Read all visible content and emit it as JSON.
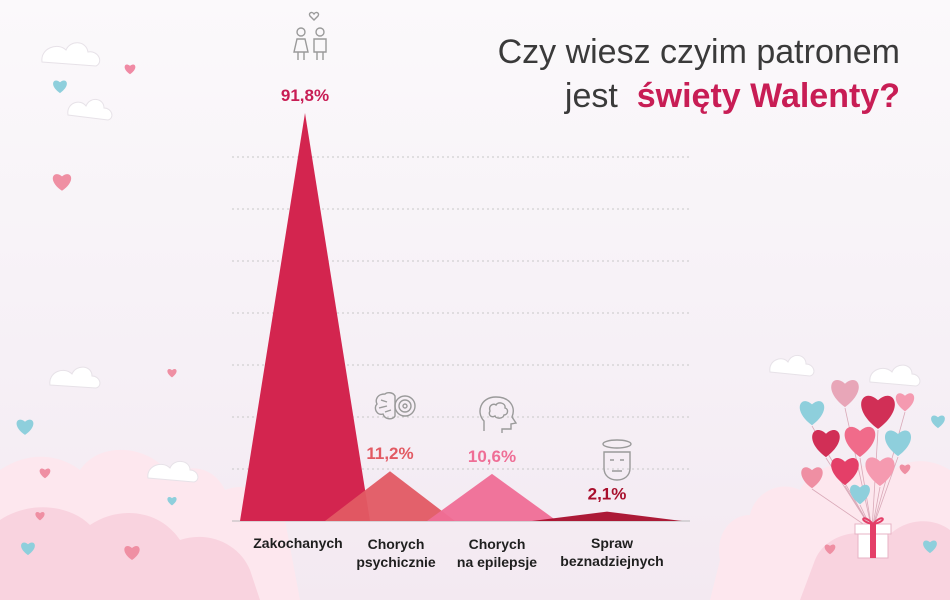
{
  "title": {
    "line1": "Czy wiesz czyim patronem",
    "line2_prefix": "jest",
    "line2_bold": "święty Walenty?"
  },
  "colors": {
    "title_accent": "#c81d55",
    "series": [
      "#d3254f",
      "#e25a63",
      "#ef6e96",
      "#a80f2c"
    ],
    "value_labels": [
      "#c81d55",
      "#e25a63",
      "#ef6e96",
      "#a80f2c"
    ],
    "grid": "#c8c8c8"
  },
  "icons": [
    "couple-with-heart-icon",
    "brain-target-icon",
    "head-brain-icon",
    "dizzy-face-icon"
  ],
  "chart_data": {
    "type": "area",
    "categories": [
      "Zakochanych",
      "Chorych\npsychicznie",
      "Chorych\nna epilepsje",
      "Spraw\nbeznadziejnych"
    ],
    "values": [
      91.8,
      11.2,
      10.6,
      2.1
    ],
    "value_labels": [
      "91,8%",
      "11,2%",
      "10,6%",
      "2,1%"
    ],
    "unit": "%",
    "ylim": [
      0,
      100
    ],
    "grid": true,
    "title": "Czy wiesz czyim patronem jest święty Walenty?"
  }
}
